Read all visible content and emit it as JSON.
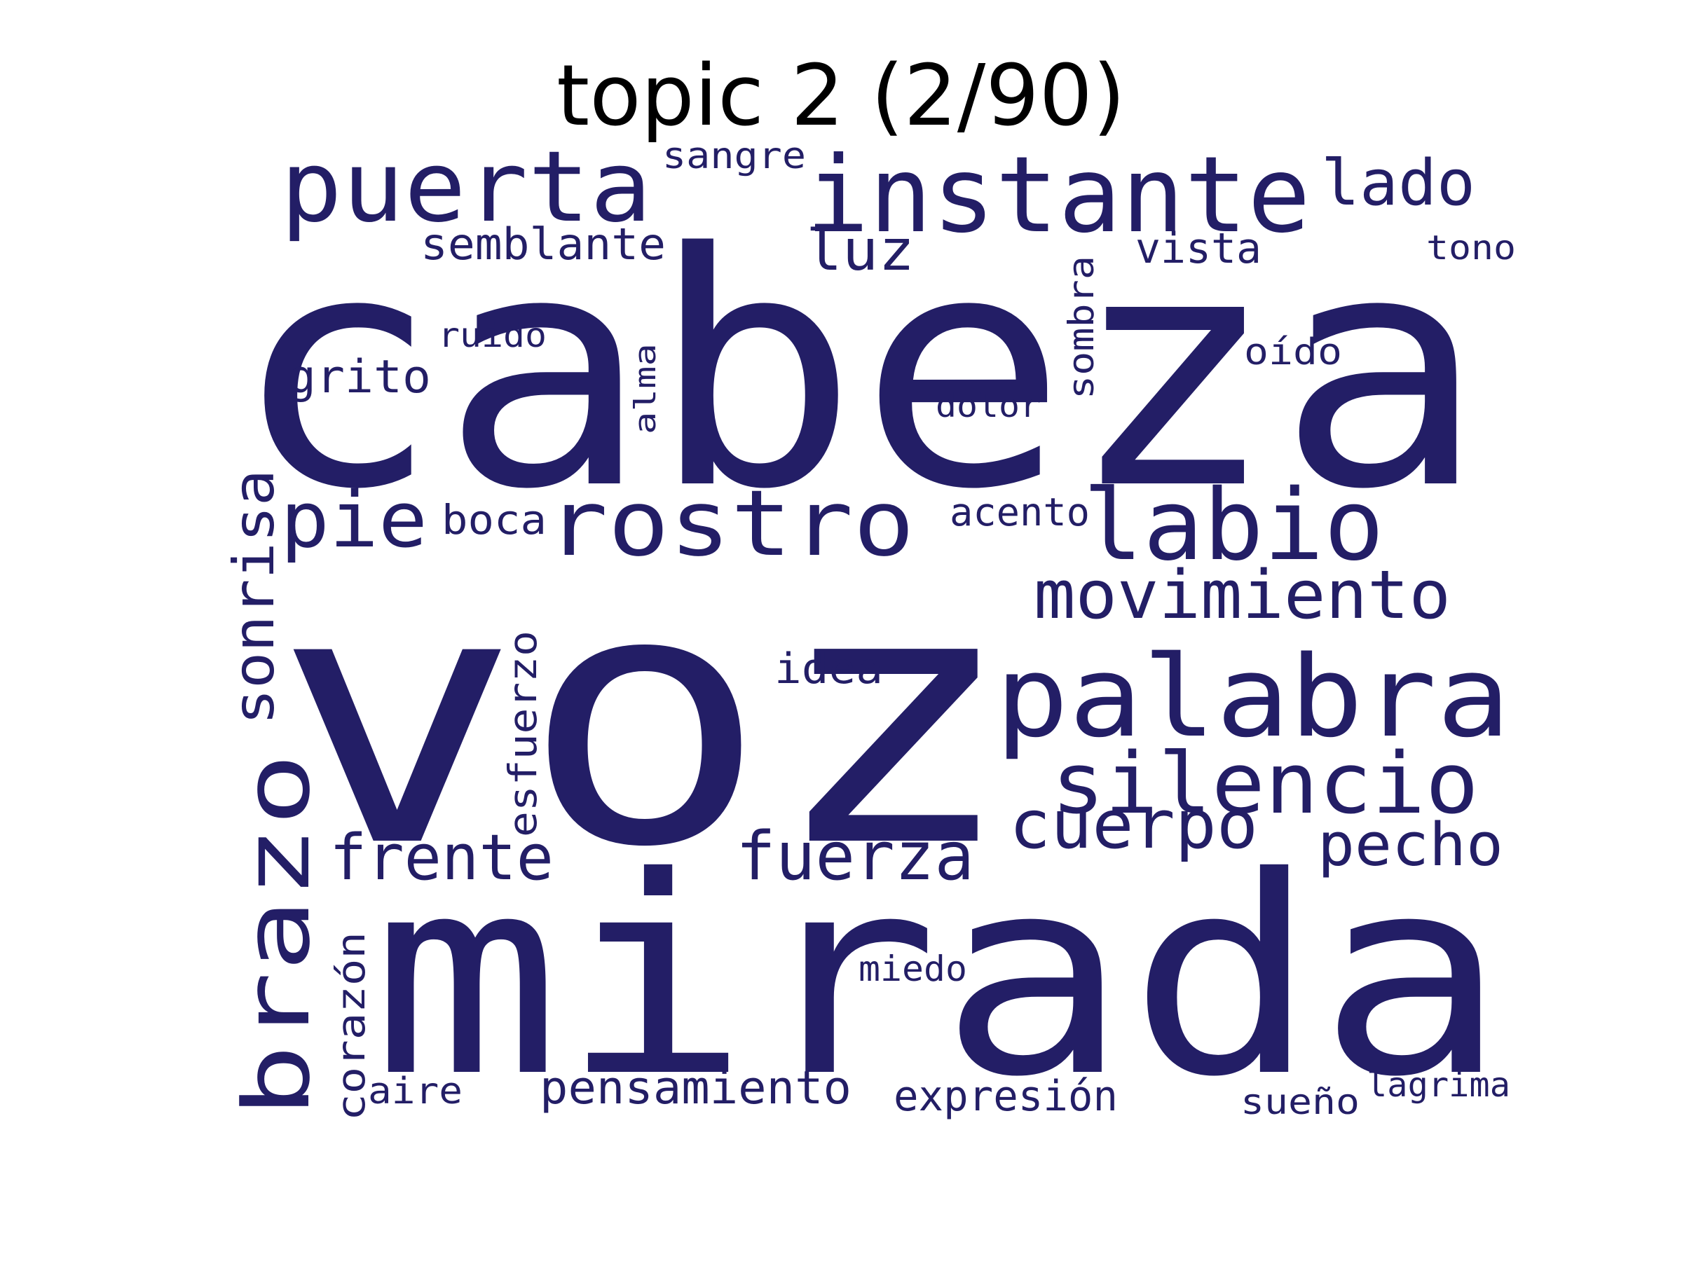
{
  "title": "topic 2 (2/90)",
  "colors": {
    "word": "#231e66",
    "title": "#000000",
    "background": "#ffffff"
  },
  "words": [
    {
      "id": "cabeza",
      "text": "cabeza"
    },
    {
      "id": "voz",
      "text": "voz"
    },
    {
      "id": "mirada",
      "text": "mirada"
    },
    {
      "id": "instante",
      "text": "instante"
    },
    {
      "id": "puerta",
      "text": "puerta"
    },
    {
      "id": "palabra",
      "text": "palabra"
    },
    {
      "id": "labio",
      "text": "labio"
    },
    {
      "id": "rostro",
      "text": "rostro"
    },
    {
      "id": "brazo",
      "text": "brazo"
    },
    {
      "id": "silencio",
      "text": "silencio"
    },
    {
      "id": "movimiento",
      "text": "movimiento"
    },
    {
      "id": "pie",
      "text": "pie"
    },
    {
      "id": "lado",
      "text": "lado"
    },
    {
      "id": "cuerpo",
      "text": "cuerpo"
    },
    {
      "id": "fuerza",
      "text": "fuerza"
    },
    {
      "id": "frente",
      "text": "frente"
    },
    {
      "id": "pecho",
      "text": "pecho"
    },
    {
      "id": "sonrisa",
      "text": "sonrisa"
    },
    {
      "id": "luz",
      "text": "luz"
    },
    {
      "id": "pensamiento",
      "text": "pensamiento"
    },
    {
      "id": "semblante",
      "text": "semblante"
    },
    {
      "id": "esfuerzo",
      "text": "esfuerzo"
    },
    {
      "id": "expresion",
      "text": "expresión"
    },
    {
      "id": "grito",
      "text": "grito"
    },
    {
      "id": "corazon",
      "text": "corazón"
    },
    {
      "id": "vista",
      "text": "vista"
    },
    {
      "id": "idea",
      "text": "idea"
    },
    {
      "id": "acento",
      "text": "acento"
    },
    {
      "id": "boca",
      "text": "boca"
    },
    {
      "id": "sombra",
      "text": "sombra"
    },
    {
      "id": "sangre",
      "text": "sangre"
    },
    {
      "id": "sueno",
      "text": "sueño"
    },
    {
      "id": "lagrima",
      "text": "lágrima"
    },
    {
      "id": "aire",
      "text": "aire"
    },
    {
      "id": "miedo",
      "text": "miedo"
    },
    {
      "id": "oido",
      "text": "oído"
    },
    {
      "id": "dolor",
      "text": "dolor"
    },
    {
      "id": "ruido",
      "text": "ruido"
    },
    {
      "id": "alma",
      "text": "alma"
    },
    {
      "id": "tono",
      "text": "tono"
    }
  ]
}
